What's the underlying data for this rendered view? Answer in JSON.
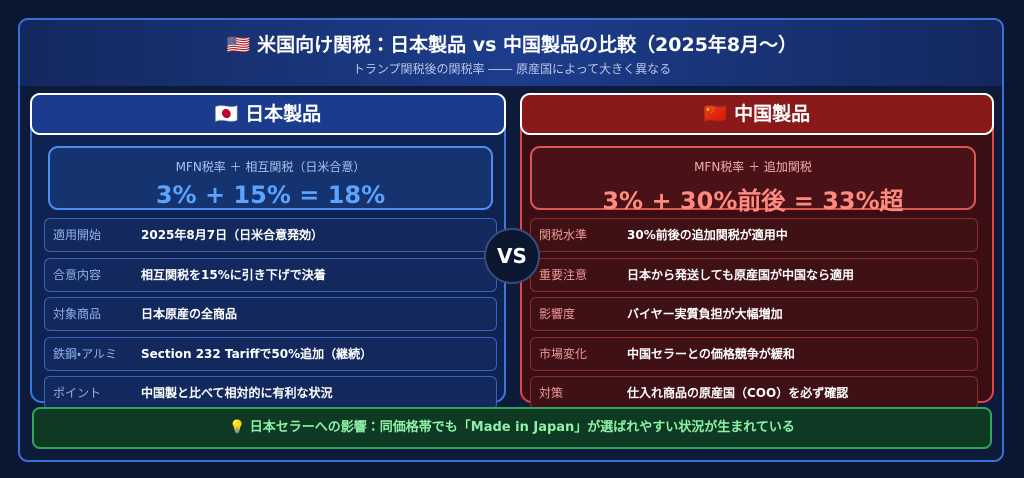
{
  "header": {
    "title": "🇺🇸 米国向け関税：日本製品 vs 中国製品の比較（2025年8月〜）",
    "subtitle": "トランプ関税後の関税率 ―― 原産国によって大きく異なる"
  },
  "japan": {
    "heading": "🇯🇵 日本製品",
    "formula_label": "MFN税率 ＋ 相互関税（日米合意）",
    "formula": "3% + 15% = 18%",
    "rows": [
      [
        "適用開始",
        "2025年8月7日（日米合意発効）"
      ],
      [
        "合意内容",
        "相互関税を15%に引き下げで決着"
      ],
      [
        "対象商品",
        "日本原産の全商品"
      ],
      [
        "鉄鋼・アルミ",
        "Section 232 Tariffで50%追加（継続）"
      ],
      [
        "ポイント",
        "中国製と比べて相対的に有利な状況"
      ]
    ]
  },
  "vs": "VS",
  "china": {
    "heading": "🇨🇳 中国製品",
    "formula_label": "MFN税率 ＋ 追加関税",
    "formula": "3% + 30%前後 = 33%超",
    "rows": [
      [
        "関税水準",
        "30%前後の追加関税が適用中"
      ],
      [
        "重要注意",
        "日本から発送しても原産国が中国なら適用"
      ],
      [
        "影響度",
        "バイヤー実質負担が大幅増加"
      ],
      [
        "市場変化",
        "中国セラーとの価格競争が緩和"
      ],
      [
        "対策",
        "仕入れ商品の原産国（COO）を必ず確認"
      ]
    ]
  },
  "footer": "💡 日本セラーへの影響：同価格帯でも「Made in Japan」が選ばれやすい状況が生まれている"
}
